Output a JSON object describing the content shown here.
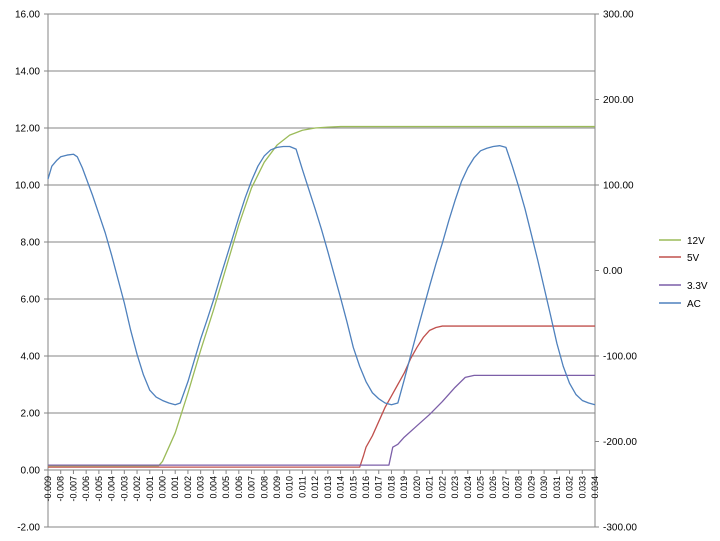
{
  "chart_data": {
    "type": "line",
    "title": "",
    "xlabel": "",
    "ylabel": "",
    "grid": true,
    "legend_position": "right",
    "x_ticks": [
      "-0.009",
      "-0.008",
      "-0.007",
      "-0.006",
      "-0.005",
      "-0.004",
      "-0.003",
      "-0.002",
      "-0.001",
      "0.000",
      "0.001",
      "0.002",
      "0.003",
      "0.004",
      "0.005",
      "0.006",
      "0.007",
      "0.008",
      "0.009",
      "0.010",
      "0.011",
      "0.012",
      "0.013",
      "0.014",
      "0.015",
      "0.016",
      "0.017",
      "0.018",
      "0.019",
      "0.020",
      "0.021",
      "0.022",
      "0.023",
      "0.024",
      "0.025",
      "0.026",
      "0.027",
      "0.028",
      "0.029",
      "0.030",
      "0.031",
      "0.032",
      "0.033",
      "0.034"
    ],
    "xlim": [
      -0.009,
      0.034
    ],
    "y_left": {
      "ylim": [
        -2,
        16
      ],
      "ticks": [
        "-2.00",
        "0.00",
        "2.00",
        "4.00",
        "6.00",
        "8.00",
        "10.00",
        "12.00",
        "14.00",
        "16.00"
      ]
    },
    "y_right": {
      "ylim": [
        -300,
        300
      ],
      "ticks": [
        "-300.00",
        "-200.00",
        "-100.00",
        "0.00",
        "100.00",
        "200.00",
        "300.00"
      ]
    },
    "series": [
      {
        "name": "12V",
        "color": "#9bbb59",
        "axis": "left",
        "points": [
          [
            -0.009,
            0.15
          ],
          [
            -0.0003,
            0.15
          ],
          [
            0.0,
            0.3
          ],
          [
            0.001,
            1.3
          ],
          [
            0.002,
            2.7
          ],
          [
            0.003,
            4.2
          ],
          [
            0.004,
            5.6
          ],
          [
            0.005,
            7.1
          ],
          [
            0.006,
            8.6
          ],
          [
            0.007,
            9.9
          ],
          [
            0.008,
            10.8
          ],
          [
            0.009,
            11.4
          ],
          [
            0.01,
            11.75
          ],
          [
            0.011,
            11.92
          ],
          [
            0.012,
            12.0
          ],
          [
            0.013,
            12.03
          ],
          [
            0.014,
            12.05
          ],
          [
            0.016,
            12.05
          ],
          [
            0.034,
            12.05
          ]
        ]
      },
      {
        "name": "5V",
        "color": "#c0504d",
        "axis": "left",
        "points": [
          [
            -0.009,
            0.1
          ],
          [
            0.0155,
            0.1
          ],
          [
            0.0158,
            0.5
          ],
          [
            0.016,
            0.8
          ],
          [
            0.0165,
            1.2
          ],
          [
            0.017,
            1.7
          ],
          [
            0.0175,
            2.2
          ],
          [
            0.018,
            2.6
          ],
          [
            0.0185,
            3.0
          ],
          [
            0.019,
            3.4
          ],
          [
            0.0195,
            3.9
          ],
          [
            0.02,
            4.3
          ],
          [
            0.0205,
            4.65
          ],
          [
            0.021,
            4.9
          ],
          [
            0.0215,
            5.0
          ],
          [
            0.022,
            5.05
          ],
          [
            0.034,
            5.05
          ]
        ]
      },
      {
        "name": "3.3V",
        "color": "#7c5fa8",
        "axis": "left",
        "points": [
          [
            -0.009,
            0.17
          ],
          [
            0.0178,
            0.17
          ],
          [
            0.0181,
            0.8
          ],
          [
            0.0185,
            0.9
          ],
          [
            0.019,
            1.15
          ],
          [
            0.02,
            1.55
          ],
          [
            0.021,
            1.95
          ],
          [
            0.022,
            2.4
          ],
          [
            0.023,
            2.9
          ],
          [
            0.0238,
            3.25
          ],
          [
            0.0245,
            3.32
          ],
          [
            0.034,
            3.32
          ]
        ]
      },
      {
        "name": "AC",
        "color": "#4f81bd",
        "axis": "right",
        "points": [
          [
            -0.009,
            107
          ],
          [
            -0.0087,
            122
          ],
          [
            -0.0083,
            129
          ],
          [
            -0.008,
            133
          ],
          [
            -0.0075,
            135
          ],
          [
            -0.007,
            136
          ],
          [
            -0.0067,
            133
          ],
          [
            -0.0063,
            120
          ],
          [
            -0.006,
            108
          ],
          [
            -0.0055,
            88
          ],
          [
            -0.005,
            66
          ],
          [
            -0.0045,
            44
          ],
          [
            -0.004,
            18
          ],
          [
            -0.0035,
            -10
          ],
          [
            -0.003,
            -38
          ],
          [
            -0.0025,
            -70
          ],
          [
            -0.002,
            -98
          ],
          [
            -0.0015,
            -122
          ],
          [
            -0.001,
            -140
          ],
          [
            -0.0005,
            -148
          ],
          [
            0.0,
            -152
          ],
          [
            0.0005,
            -155
          ],
          [
            0.001,
            -157
          ],
          [
            0.0014,
            -155
          ],
          [
            0.002,
            -130
          ],
          [
            0.0025,
            -105
          ],
          [
            0.003,
            -80
          ],
          [
            0.0035,
            -58
          ],
          [
            0.004,
            -35
          ],
          [
            0.0045,
            -10
          ],
          [
            0.005,
            14
          ],
          [
            0.0055,
            38
          ],
          [
            0.006,
            62
          ],
          [
            0.0065,
            85
          ],
          [
            0.007,
            105
          ],
          [
            0.0075,
            122
          ],
          [
            0.008,
            134
          ],
          [
            0.0085,
            141
          ],
          [
            0.009,
            144
          ],
          [
            0.0095,
            145
          ],
          [
            0.01,
            145
          ],
          [
            0.0105,
            142
          ],
          [
            0.011,
            118
          ],
          [
            0.0115,
            95
          ],
          [
            0.012,
            72
          ],
          [
            0.0125,
            48
          ],
          [
            0.013,
            22
          ],
          [
            0.0135,
            -5
          ],
          [
            0.014,
            -32
          ],
          [
            0.0145,
            -60
          ],
          [
            0.015,
            -90
          ],
          [
            0.0155,
            -112
          ],
          [
            0.016,
            -130
          ],
          [
            0.0165,
            -143
          ],
          [
            0.017,
            -150
          ],
          [
            0.0175,
            -155
          ],
          [
            0.018,
            -157
          ],
          [
            0.0185,
            -155
          ],
          [
            0.019,
            -128
          ],
          [
            0.0195,
            -100
          ],
          [
            0.02,
            -72
          ],
          [
            0.0205,
            -45
          ],
          [
            0.021,
            -18
          ],
          [
            0.0215,
            8
          ],
          [
            0.022,
            32
          ],
          [
            0.0225,
            58
          ],
          [
            0.023,
            82
          ],
          [
            0.0235,
            104
          ],
          [
            0.024,
            120
          ],
          [
            0.0245,
            132
          ],
          [
            0.025,
            140
          ],
          [
            0.0255,
            143
          ],
          [
            0.026,
            145
          ],
          [
            0.0265,
            146
          ],
          [
            0.027,
            144
          ],
          [
            0.0275,
            122
          ],
          [
            0.028,
            98
          ],
          [
            0.0285,
            72
          ],
          [
            0.029,
            42
          ],
          [
            0.0295,
            12
          ],
          [
            0.03,
            -20
          ],
          [
            0.0305,
            -52
          ],
          [
            0.031,
            -85
          ],
          [
            0.0315,
            -112
          ],
          [
            0.032,
            -132
          ],
          [
            0.0325,
            -145
          ],
          [
            0.033,
            -152
          ],
          [
            0.0335,
            -155
          ],
          [
            0.034,
            -157
          ]
        ]
      }
    ]
  }
}
